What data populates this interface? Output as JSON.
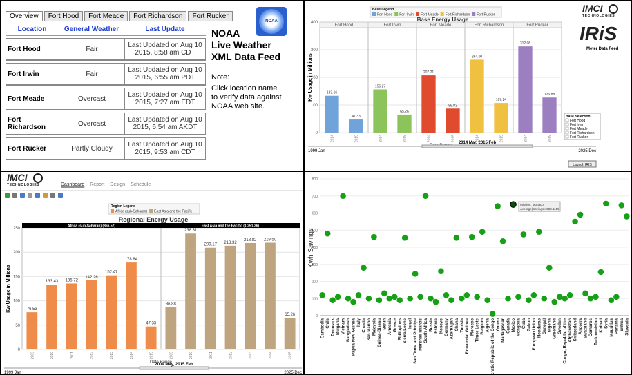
{
  "noaa": {
    "tabs": [
      "Overview",
      "Fort Hood",
      "Fort Meade",
      "Fort Richardson",
      "Fort Rucker"
    ],
    "logo": "NOAA",
    "table": {
      "headers": [
        "Location",
        "General Weather",
        "Last Update"
      ],
      "rows": [
        [
          "Fort Hood",
          "Fair",
          "Last Updated on Aug 10 2015, 8:58 am CDT"
        ],
        [
          "Fort Irwin",
          "Fair",
          "Last Updated on Aug 10 2015, 6:55 am PDT"
        ],
        [
          "Fort Meade",
          "Overcast",
          "Last Updated on Aug 10 2015, 7:27 am EDT"
        ],
        [
          "Fort Richardson",
          "Overcast",
          "Last Updated on Aug 10 2015, 6:54 am AKDT"
        ],
        [
          "Fort Rucker",
          "Partly Cloudy",
          "Last Updated on Aug 10 2015, 9:53 am CDT"
        ]
      ]
    },
    "heading": [
      "NOAA",
      "Live Weather",
      "XML Data Feed"
    ],
    "note": [
      "Note:",
      "Click location name",
      "to verify data against",
      "NOAA web site."
    ]
  },
  "base_chart": {
    "type": "bar",
    "logo": {
      "brand": "IMCI",
      "sub": "TECHNOLOGIES",
      "product": "IRiS",
      "caption": "Meter Data Feed"
    },
    "legend_title": "Base Legend",
    "title": "Base Energy Usage",
    "ylabel": "Kw Usage in Millions",
    "xlabel": "Date Range",
    "categories": [
      "2014",
      "2015"
    ],
    "series": [
      {
        "name": "Fort Hood",
        "color": "#6fa3d9",
        "values": [
          133.16,
          47.33
        ],
        "value_labels": [
          "133.16",
          "47.33"
        ]
      },
      {
        "name": "Fort Irwin",
        "color": "#8cc35a",
        "values": [
          156.27,
          65.26
        ],
        "value_labels": [
          "156.27",
          "65.26"
        ]
      },
      {
        "name": "Fort Meade",
        "color": "#e04a2f",
        "values": [
          207.21,
          86.83
        ],
        "value_labels": [
          "207.21",
          "86.83"
        ]
      },
      {
        "name": "Fort Richardson",
        "color": "#f0c040",
        "values": [
          264.0,
          107.24
        ],
        "value_labels": [
          "264.00",
          "107.24"
        ]
      },
      {
        "name": "Fort Rucker",
        "color": "#9b7fc0",
        "values": [
          312.08,
          126.88
        ],
        "value_labels": [
          "312.08",
          "126.88"
        ]
      }
    ],
    "ylim": [
      0,
      400
    ],
    "yticks": [
      0,
      100,
      200,
      300,
      400
    ],
    "range": {
      "start": "1999 Jan",
      "selected": "2014 Mar, 2015 Feb",
      "end": "2025 Dec"
    },
    "selection_title": "Base Selection",
    "button": "Launch IRIS"
  },
  "regional_chart": {
    "type": "bar",
    "logo": {
      "brand": "IMCI",
      "sub": "TECHNOLOGIES"
    },
    "nav": [
      "Dashboard",
      "Report",
      "Design",
      "Schedule"
    ],
    "legend_title": "Region Legend",
    "title": "Regional Energy Usage",
    "ylabel": "Kw Usage in Millions",
    "xlabel": "Date Range",
    "categories": [
      "2009",
      "2010",
      "2011",
      "2012",
      "2013",
      "2014",
      "2015"
    ],
    "series": [
      {
        "name": "Africa (sub-Saharan)",
        "header": "Africa (sub-Saharan) (866.57)",
        "color": "#f08c4a",
        "values": [
          76.53,
          133.43,
          135.72,
          142.26,
          152.47,
          178.84,
          47.33
        ],
        "value_labels": [
          "76.53",
          "133.43",
          "135.72",
          "142.26",
          "152.47",
          "178.84",
          "47.33"
        ]
      },
      {
        "name": "East Asia and the Pacific",
        "header": "East Asia and the Pacific (1,251.26)",
        "color": "#bfa57f",
        "values": [
          86.88,
          238.31,
          209.17,
          213.32,
          218.82,
          219.5,
          65.26
        ],
        "value_labels": [
          "86.88",
          "238.31",
          "209.17",
          "213.32",
          "218.82",
          "219.50",
          "65.26"
        ]
      }
    ],
    "ylim": [
      0,
      250
    ],
    "yticks": [
      0,
      50,
      100,
      150,
      200,
      250
    ],
    "range": {
      "start": "1999 Jan",
      "selected": "2009 May, 2015 Feb",
      "end": "2025 Dec"
    }
  },
  "savings_chart": {
    "type": "scatter",
    "ylabel": "Kwh Savings",
    "color": "#15a015",
    "categories": [
      "Cambodia",
      "Chile",
      "Denmark",
      "Bulgaria",
      "Vietnam",
      "Bangladesh",
      "Papua New Guinea",
      "Italy",
      "Croatia",
      "San Marino",
      "Malaysia",
      "Guinea-Bissau",
      "Benin",
      "Armenia",
      "Greece",
      "Philippines",
      "Sierra Leone",
      "Israel",
      "Sao Tome and Principe",
      "Marshall Islands",
      "South Africa",
      "Russia",
      "Estonia",
      "Kosovo",
      "Germany",
      "Azerbaijan",
      "Ghana",
      "Tunisia",
      "Equatorial Guinea",
      "Morocco",
      "Timor-Leste",
      "Belgium",
      "Algeria",
      "Democratic Republic of the Congo",
      "Yemen",
      "Madagascar",
      "Canada",
      "Mexico",
      "Mongolia",
      "Cuba",
      "Gabon",
      "European Union",
      "Honduras",
      "Senegal",
      "Nigeria",
      "Greenland",
      "Sweden",
      "Congo, Republic of the",
      "Afghanistan",
      "Switzerland",
      "Andorra",
      "Swaziland",
      "Comoros",
      "Turkmenistan",
      "Kiribati",
      "Syria",
      "Mauritius",
      "Panama",
      "Eritrea",
      "Slovenia"
    ],
    "values": [
      120,
      480,
      90,
      110,
      700,
      100,
      80,
      120,
      280,
      100,
      460,
      90,
      130,
      100,
      110,
      90,
      455,
      100,
      245,
      110,
      700,
      100,
      80,
      260,
      120,
      90,
      455,
      100,
      120,
      460,
      110,
      490,
      90,
      10,
      640,
      435,
      100,
      650,
      110,
      475,
      90,
      120,
      490,
      100,
      280,
      80,
      110,
      100,
      120,
      550,
      590,
      130,
      100,
      110,
      255,
      655,
      90,
      110,
      645,
      580
    ],
    "highlight": 37,
    "tooltip": [
      "Mission: Monaco",
      "Average(Savings): 650.1155"
    ],
    "ylim": [
      0,
      800
    ],
    "yticks": [
      0,
      100,
      200,
      300,
      400,
      500,
      600,
      700,
      800
    ]
  }
}
